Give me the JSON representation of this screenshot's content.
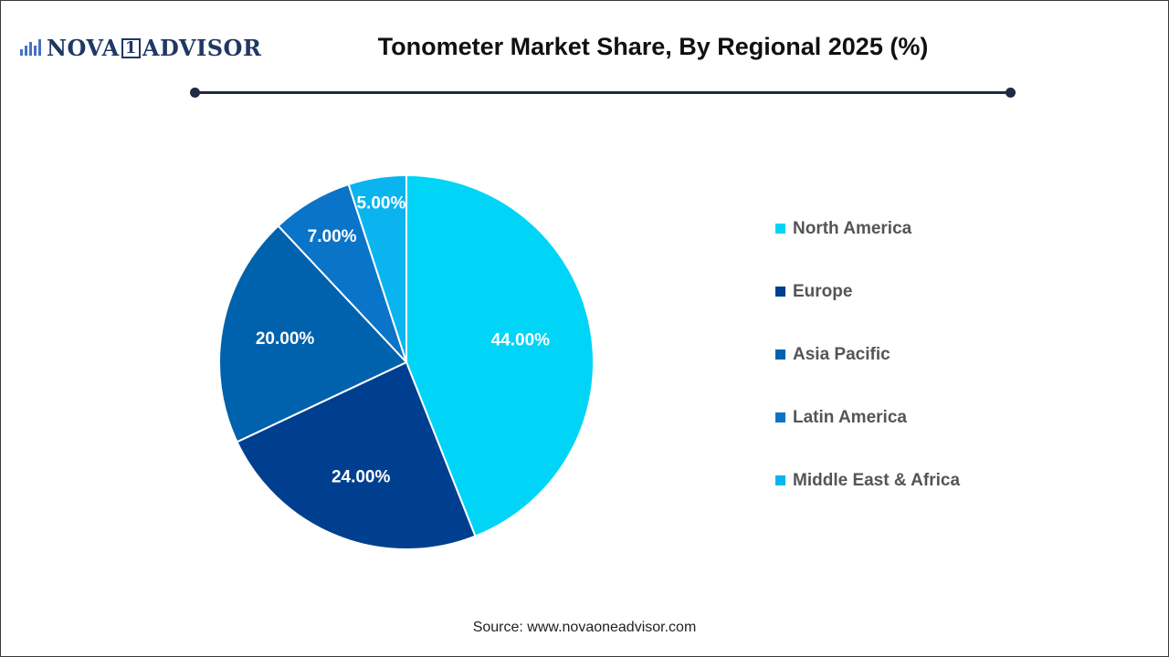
{
  "brand": {
    "logo_text_a": "NOVA",
    "logo_text_box": "1",
    "logo_text_b": "ADVISOR"
  },
  "chart_data": {
    "type": "pie",
    "title": "Tonometer Market Share, By Regional 2025 (%)",
    "categories": [
      "North America",
      "Europe",
      "Asia Pacific",
      "Latin America",
      "Middle East & Africa"
    ],
    "values": [
      44.0,
      24.0,
      20.0,
      7.0,
      5.0
    ],
    "value_labels": [
      "44.00%",
      "24.00%",
      "20.00%",
      "7.00%",
      "5.00%"
    ],
    "colors": [
      "#00d4f7",
      "#003f8f",
      "#0062ad",
      "#0a74c8",
      "#0ab4ef"
    ],
    "legend_position": "right"
  },
  "footer": {
    "source": "Source: www.novaoneadvisor.com"
  }
}
